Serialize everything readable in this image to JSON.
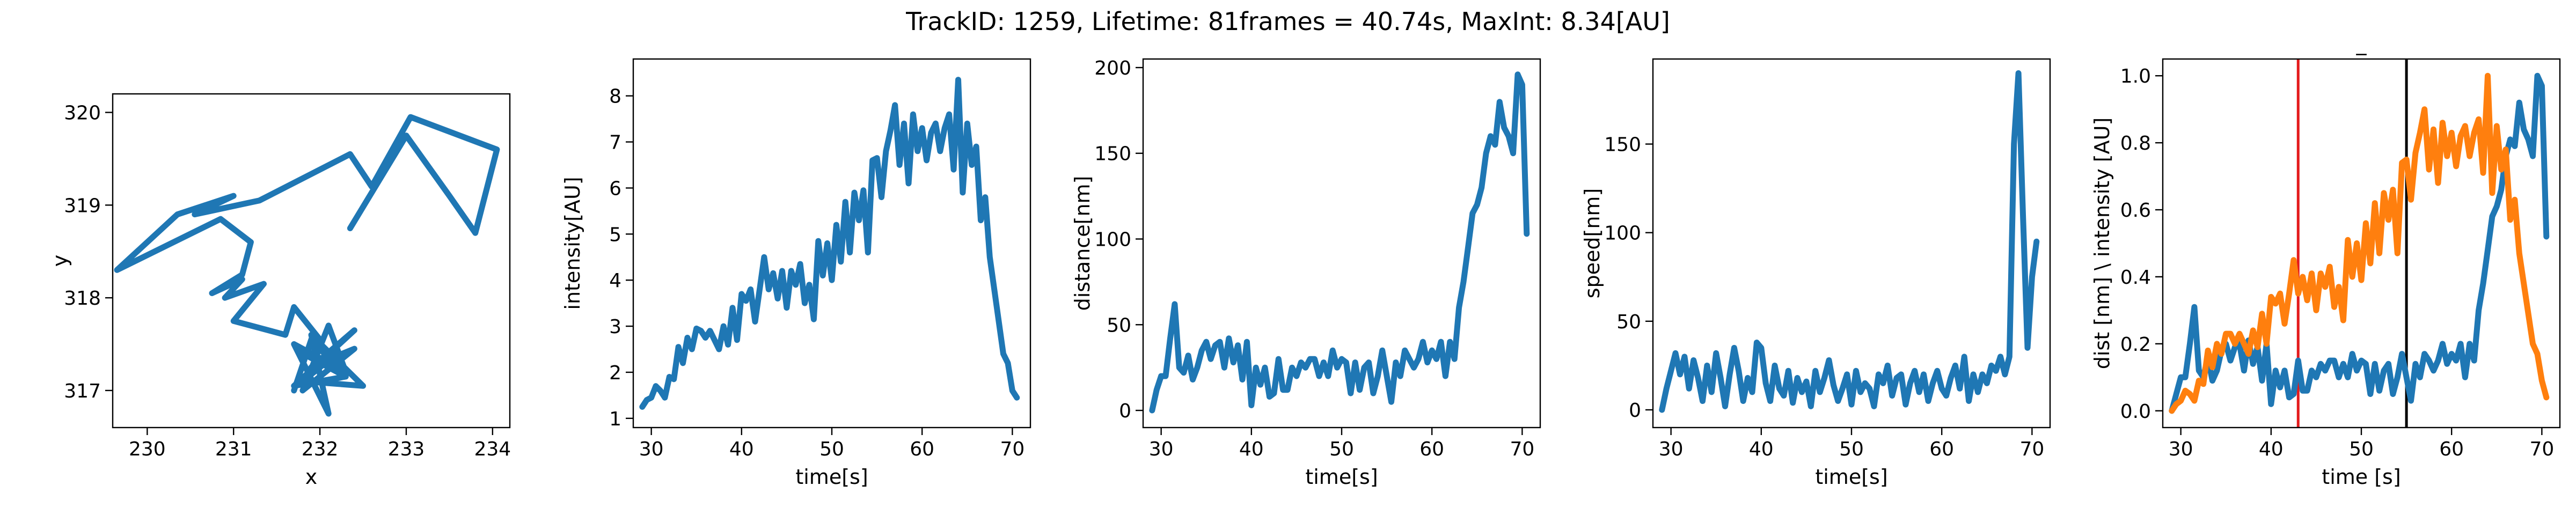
{
  "figure": {
    "title": "TrackID: 1259, Lifetime: 81frames = 40.74s, MaxInt: 8.34[AU]"
  },
  "colors": {
    "blue": "#1f77b4",
    "orange": "#ff7f0e",
    "red": "#e41a1c",
    "black": "#000000"
  },
  "chart_data": [
    {
      "type": "line",
      "title": "",
      "xlabel": "x",
      "ylabel": "y",
      "xlim": [
        229.6,
        234.2
      ],
      "ylim": [
        316.6,
        320.2
      ],
      "xticks": [
        230,
        231,
        232,
        233,
        234
      ],
      "yticks": [
        317,
        318,
        319,
        320
      ],
      "grid": false,
      "series": [
        {
          "color": "#1f77b4",
          "x": [
            232.35,
            233.0,
            233.5,
            233.8,
            234.05,
            233.05,
            232.6,
            232.35,
            231.3,
            230.55,
            231.0,
            230.35,
            229.65,
            230.85,
            231.2,
            231.1,
            230.75,
            231.1,
            230.9,
            231.35,
            231.0,
            231.6,
            231.7,
            232.0,
            231.8,
            232.3,
            231.7,
            232.4,
            231.9,
            232.2,
            231.8,
            232.5,
            231.9,
            232.1,
            231.7,
            232.3,
            232.1,
            231.8,
            232.4,
            232.0,
            231.7,
            232.2,
            231.9,
            231.7
          ],
          "y": [
            318.75,
            319.75,
            319.1,
            318.7,
            319.6,
            319.95,
            319.2,
            319.55,
            319.05,
            318.9,
            319.1,
            318.9,
            318.3,
            318.85,
            318.6,
            318.25,
            318.05,
            318.2,
            318.0,
            318.15,
            317.75,
            317.6,
            317.9,
            317.55,
            317.4,
            317.15,
            317.05,
            317.65,
            317.25,
            317.4,
            317.1,
            317.05,
            317.6,
            316.75,
            317.5,
            317.2,
            317.7,
            317.0,
            317.45,
            317.3,
            317.5,
            317.25,
            317.55,
            317.0
          ]
        }
      ]
    },
    {
      "type": "line",
      "title": "",
      "xlabel": "time[s]",
      "ylabel": "intensity[AU]",
      "xlim": [
        28,
        72
      ],
      "ylim": [
        0.8,
        8.8
      ],
      "xticks": [
        30,
        40,
        50,
        60,
        70
      ],
      "yticks": [
        1,
        2,
        3,
        4,
        5,
        6,
        7,
        8
      ],
      "grid": false,
      "series": [
        {
          "color": "#1f77b4",
          "x": [
            29.0,
            29.5,
            30.0,
            30.5,
            31.0,
            31.5,
            32.0,
            32.5,
            33.0,
            33.5,
            34.0,
            34.5,
            35.0,
            35.5,
            36.0,
            36.5,
            37.0,
            37.5,
            38.0,
            38.5,
            39.0,
            39.5,
            40.0,
            40.5,
            41.0,
            41.5,
            42.0,
            42.5,
            43.0,
            43.5,
            44.0,
            44.5,
            45.0,
            45.5,
            46.0,
            46.5,
            47.0,
            47.5,
            48.0,
            48.5,
            49.0,
            49.5,
            50.0,
            50.5,
            51.0,
            51.5,
            52.0,
            52.5,
            53.0,
            53.5,
            54.0,
            54.5,
            55.0,
            55.5,
            56.0,
            56.5,
            57.0,
            57.5,
            58.0,
            58.5,
            59.0,
            59.5,
            60.0,
            60.5,
            61.0,
            61.5,
            62.0,
            62.5,
            63.0,
            63.5,
            64.0,
            64.5,
            65.0,
            65.5,
            66.0,
            66.5,
            67.0,
            67.5,
            68.0,
            68.5,
            69.0,
            69.5,
            70.0,
            70.5
          ],
          "y": [
            1.25,
            1.4,
            1.45,
            1.7,
            1.6,
            1.45,
            1.9,
            1.85,
            2.55,
            2.2,
            2.75,
            2.5,
            2.95,
            2.9,
            2.75,
            2.9,
            2.7,
            2.5,
            3.0,
            2.6,
            3.4,
            2.7,
            3.7,
            3.55,
            3.8,
            3.1,
            3.8,
            4.5,
            3.8,
            4.15,
            3.6,
            4.2,
            3.4,
            4.2,
            3.9,
            4.35,
            3.5,
            3.9,
            3.15,
            4.85,
            4.1,
            4.8,
            4.0,
            5.2,
            4.4,
            5.7,
            4.6,
            5.9,
            5.3,
            5.95,
            4.6,
            6.6,
            6.65,
            5.8,
            6.8,
            7.25,
            7.8,
            6.5,
            7.4,
            6.1,
            7.6,
            6.8,
            7.3,
            6.6,
            7.2,
            7.4,
            6.8,
            7.3,
            7.6,
            6.4,
            8.35,
            5.9,
            7.4,
            6.5,
            6.9,
            5.3,
            5.8,
            4.5,
            3.8,
            3.1,
            2.4,
            2.2,
            1.6,
            1.45
          ]
        }
      ]
    },
    {
      "type": "line",
      "title": "",
      "xlabel": "time[s]",
      "ylabel": "distance[nm]",
      "xlim": [
        28,
        72
      ],
      "ylim": [
        -10,
        205
      ],
      "xticks": [
        30,
        40,
        50,
        60,
        70
      ],
      "yticks": [
        0,
        50,
        100,
        150,
        200
      ],
      "grid": false,
      "series": [
        {
          "color": "#1f77b4",
          "x": [
            29.0,
            29.5,
            30.0,
            30.5,
            31.0,
            31.5,
            32.0,
            32.5,
            33.0,
            33.5,
            34.0,
            34.5,
            35.0,
            35.5,
            36.0,
            36.5,
            37.0,
            37.5,
            38.0,
            38.5,
            39.0,
            39.5,
            40.0,
            40.5,
            41.0,
            41.5,
            42.0,
            42.5,
            43.0,
            43.5,
            44.0,
            44.5,
            45.0,
            45.5,
            46.0,
            46.5,
            47.0,
            47.5,
            48.0,
            48.5,
            49.0,
            49.5,
            50.0,
            50.5,
            51.0,
            51.5,
            52.0,
            52.5,
            53.0,
            53.5,
            54.0,
            54.5,
            55.0,
            55.5,
            56.0,
            56.5,
            57.0,
            57.5,
            58.0,
            58.5,
            59.0,
            59.5,
            60.0,
            60.5,
            61.0,
            61.5,
            62.0,
            62.5,
            63.0,
            63.5,
            64.0,
            64.5,
            65.0,
            65.5,
            66.0,
            66.5,
            67.0,
            67.5,
            68.0,
            68.5,
            69.0,
            69.5,
            70.0,
            70.5
          ],
          "y": [
            0,
            12,
            20,
            20,
            42,
            62,
            25,
            22,
            32,
            18,
            25,
            35,
            40,
            30,
            38,
            40,
            25,
            42,
            28,
            38,
            18,
            40,
            3,
            25,
            15,
            25,
            8,
            10,
            30,
            12,
            12,
            25,
            20,
            28,
            25,
            30,
            30,
            20,
            28,
            20,
            35,
            25,
            30,
            28,
            10,
            28,
            12,
            25,
            28,
            10,
            20,
            35,
            20,
            5,
            28,
            20,
            35,
            30,
            25,
            30,
            40,
            28,
            35,
            30,
            40,
            20,
            40,
            30,
            60,
            75,
            95,
            115,
            120,
            130,
            150,
            160,
            155,
            180,
            165,
            160,
            150,
            196,
            190,
            103
          ]
        }
      ]
    },
    {
      "type": "line",
      "title": "",
      "xlabel": "time[s]",
      "ylabel": "speed[nm]",
      "xlim": [
        28,
        72
      ],
      "ylim": [
        -10,
        198
      ],
      "xticks": [
        30,
        40,
        50,
        60,
        70
      ],
      "yticks": [
        0,
        50,
        100,
        150
      ],
      "grid": false,
      "series": [
        {
          "color": "#1f77b4",
          "x": [
            29.0,
            29.5,
            30.0,
            30.5,
            31.0,
            31.5,
            32.0,
            32.5,
            33.0,
            33.5,
            34.0,
            34.5,
            35.0,
            35.5,
            36.0,
            36.5,
            37.0,
            37.5,
            38.0,
            38.5,
            39.0,
            39.5,
            40.0,
            40.5,
            41.0,
            41.5,
            42.0,
            42.5,
            43.0,
            43.5,
            44.0,
            44.5,
            45.0,
            45.5,
            46.0,
            46.5,
            47.0,
            47.5,
            48.0,
            48.5,
            49.0,
            49.5,
            50.0,
            50.5,
            51.0,
            51.5,
            52.0,
            52.5,
            53.0,
            53.5,
            54.0,
            54.5,
            55.0,
            55.5,
            56.0,
            56.5,
            57.0,
            57.5,
            58.0,
            58.5,
            59.0,
            59.5,
            60.0,
            60.5,
            61.0,
            61.5,
            62.0,
            62.5,
            63.0,
            63.5,
            64.0,
            64.5,
            65.0,
            65.5,
            66.0,
            66.5,
            67.0,
            67.5,
            68.0,
            68.5,
            69.0,
            69.5,
            70.0,
            70.5
          ],
          "y": [
            0,
            12,
            22,
            32,
            20,
            30,
            12,
            28,
            18,
            5,
            25,
            10,
            32,
            18,
            2,
            20,
            35,
            22,
            5,
            18,
            10,
            38,
            35,
            15,
            5,
            25,
            12,
            8,
            22,
            4,
            18,
            10,
            16,
            2,
            22,
            10,
            18,
            28,
            14,
            5,
            12,
            20,
            3,
            22,
            10,
            15,
            12,
            2,
            20,
            15,
            25,
            8,
            18,
            20,
            3,
            15,
            22,
            10,
            20,
            5,
            15,
            22,
            12,
            8,
            18,
            25,
            12,
            30,
            5,
            20,
            10,
            20,
            15,
            25,
            22,
            30,
            20,
            30,
            150,
            190,
            110,
            35,
            75,
            95
          ]
        }
      ]
    },
    {
      "type": "line",
      "title": "_",
      "xlabel": "time [s]",
      "ylabel": "dist [nm] \\ intensity [AU]",
      "xlim": [
        28,
        72
      ],
      "ylim": [
        -0.05,
        1.05
      ],
      "xticks": [
        30,
        40,
        50,
        60,
        70
      ],
      "yticks": [
        0.0,
        0.2,
        0.4,
        0.6,
        0.8,
        1.0
      ],
      "ytick_labels": [
        "0.0",
        "0.2",
        "0.4",
        "0.6",
        "0.8",
        "1.0"
      ],
      "grid": false,
      "vlines": [
        {
          "x": 43,
          "color": "#e41a1c"
        },
        {
          "x": 55,
          "color": "#000000"
        }
      ],
      "series": [
        {
          "color": "#1f77b4",
          "x": [
            29.0,
            29.5,
            30.0,
            30.5,
            31.0,
            31.5,
            32.0,
            32.5,
            33.0,
            33.5,
            34.0,
            34.5,
            35.0,
            35.5,
            36.0,
            36.5,
            37.0,
            37.5,
            38.0,
            38.5,
            39.0,
            39.5,
            40.0,
            40.5,
            41.0,
            41.5,
            42.0,
            42.5,
            43.0,
            43.5,
            44.0,
            44.5,
            45.0,
            45.5,
            46.0,
            46.5,
            47.0,
            47.5,
            48.0,
            48.5,
            49.0,
            49.5,
            50.0,
            50.5,
            51.0,
            51.5,
            52.0,
            52.5,
            53.0,
            53.5,
            54.0,
            54.5,
            55.0,
            55.5,
            56.0,
            56.5,
            57.0,
            57.5,
            58.0,
            58.5,
            59.0,
            59.5,
            60.0,
            60.5,
            61.0,
            61.5,
            62.0,
            62.5,
            63.0,
            63.5,
            64.0,
            64.5,
            65.0,
            65.5,
            66.0,
            66.5,
            67.0,
            67.5,
            68.0,
            68.5,
            69.0,
            69.5,
            70.0,
            70.5
          ],
          "y": [
            0.0,
            0.05,
            0.1,
            0.1,
            0.2,
            0.31,
            0.12,
            0.1,
            0.16,
            0.09,
            0.12,
            0.18,
            0.2,
            0.15,
            0.19,
            0.2,
            0.12,
            0.21,
            0.14,
            0.19,
            0.09,
            0.2,
            0.02,
            0.12,
            0.07,
            0.12,
            0.04,
            0.05,
            0.15,
            0.06,
            0.06,
            0.12,
            0.1,
            0.14,
            0.12,
            0.15,
            0.15,
            0.1,
            0.14,
            0.1,
            0.17,
            0.12,
            0.15,
            0.14,
            0.05,
            0.14,
            0.06,
            0.12,
            0.14,
            0.05,
            0.1,
            0.17,
            0.1,
            0.03,
            0.14,
            0.1,
            0.17,
            0.15,
            0.12,
            0.15,
            0.2,
            0.14,
            0.17,
            0.15,
            0.2,
            0.1,
            0.2,
            0.15,
            0.3,
            0.38,
            0.48,
            0.58,
            0.61,
            0.66,
            0.76,
            0.81,
            0.79,
            0.92,
            0.84,
            0.81,
            0.76,
            1.0,
            0.97,
            0.52
          ]
        },
        {
          "color": "#ff7f0e",
          "x": [
            29.0,
            29.5,
            30.0,
            30.5,
            31.0,
            31.5,
            32.0,
            32.5,
            33.0,
            33.5,
            34.0,
            34.5,
            35.0,
            35.5,
            36.0,
            36.5,
            37.0,
            37.5,
            38.0,
            38.5,
            39.0,
            39.5,
            40.0,
            40.5,
            41.0,
            41.5,
            42.0,
            42.5,
            43.0,
            43.5,
            44.0,
            44.5,
            45.0,
            45.5,
            46.0,
            46.5,
            47.0,
            47.5,
            48.0,
            48.5,
            49.0,
            49.5,
            50.0,
            50.5,
            51.0,
            51.5,
            52.0,
            52.5,
            53.0,
            53.5,
            54.0,
            54.5,
            55.0,
            55.5,
            56.0,
            56.5,
            57.0,
            57.5,
            58.0,
            58.5,
            59.0,
            59.5,
            60.0,
            60.5,
            61.0,
            61.5,
            62.0,
            62.5,
            63.0,
            63.5,
            64.0,
            64.5,
            65.0,
            65.5,
            66.0,
            66.5,
            67.0,
            67.5,
            68.0,
            68.5,
            69.0,
            69.5,
            70.0,
            70.5
          ],
          "y": [
            0.0,
            0.02,
            0.03,
            0.06,
            0.05,
            0.03,
            0.09,
            0.08,
            0.18,
            0.13,
            0.2,
            0.17,
            0.23,
            0.23,
            0.2,
            0.23,
            0.2,
            0.17,
            0.24,
            0.19,
            0.29,
            0.2,
            0.34,
            0.32,
            0.35,
            0.26,
            0.35,
            0.45,
            0.35,
            0.4,
            0.33,
            0.41,
            0.3,
            0.41,
            0.37,
            0.43,
            0.31,
            0.37,
            0.27,
            0.51,
            0.4,
            0.5,
            0.39,
            0.56,
            0.44,
            0.62,
            0.47,
            0.65,
            0.57,
            0.66,
            0.47,
            0.74,
            0.75,
            0.63,
            0.77,
            0.83,
            0.9,
            0.72,
            0.84,
            0.68,
            0.86,
            0.76,
            0.83,
            0.73,
            0.82,
            0.85,
            0.76,
            0.83,
            0.87,
            0.71,
            1.0,
            0.65,
            0.85,
            0.72,
            0.78,
            0.57,
            0.63,
            0.47,
            0.38,
            0.29,
            0.2,
            0.17,
            0.09,
            0.04
          ]
        }
      ]
    }
  ]
}
